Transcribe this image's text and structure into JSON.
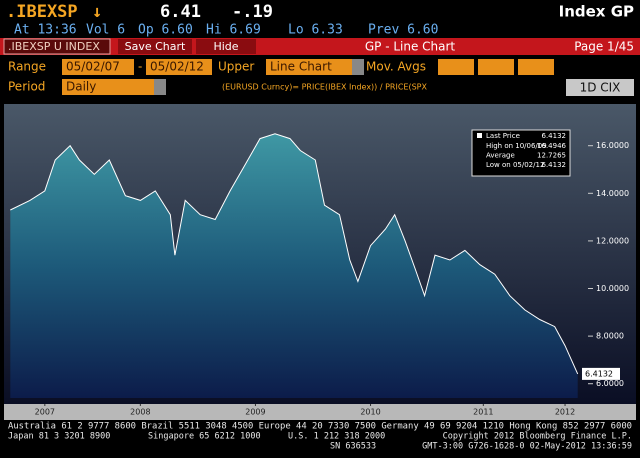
{
  "header": {
    "ticker": ".IBEXSP",
    "arrow": "↓",
    "price": "6.41",
    "change": "-.19",
    "function": "Index GP"
  },
  "quote_line": {
    "time": "At 13:36",
    "volume": "Vol 6",
    "open": "Op 6.60",
    "high": "Hi 6.69",
    "low": "Lo 6.33",
    "prev": "Prev 6.60"
  },
  "toolbar": {
    "security": ".IBEXSP U INDEX",
    "save": "Save Chart",
    "hide": "Hide",
    "title": "GP - Line Chart",
    "page": "Page 1/45"
  },
  "settings": {
    "range_label": "Range",
    "start": "05/02/07",
    "dash": "-",
    "end": "05/02/12",
    "upper_label": "Upper",
    "upper": "Line Chart",
    "mov_avgs": "Mov. Avgs",
    "period_label": "Period",
    "period": "Daily",
    "formula": "(EURUSD Curncy)= PRICE(IBEX Index)) / PRICE(SPX",
    "cix": "1D CIX"
  },
  "chart_data": {
    "type": "area",
    "x": [
      2007.37,
      2007.54,
      2007.67,
      2007.76,
      2007.89,
      2007.97,
      2008.1,
      2008.23,
      2008.37,
      2008.5,
      2008.63,
      2008.76,
      2008.8,
      2008.89,
      2009.02,
      2009.15,
      2009.28,
      2009.41,
      2009.54,
      2009.67,
      2009.8,
      2009.89,
      2010.02,
      2010.1,
      2010.23,
      2010.32,
      2010.39,
      2010.5,
      2010.63,
      2010.71,
      2010.8,
      2010.89,
      2010.97,
      2011.06,
      2011.19,
      2011.32,
      2011.45,
      2011.58,
      2011.71,
      2011.84,
      2011.97,
      2012.1,
      2012.19,
      2012.3
    ],
    "series": [
      {
        "name": "Last Price",
        "color": "#ffffff",
        "values": [
          13.3,
          13.7,
          14.1,
          15.4,
          16.0,
          15.4,
          14.8,
          15.4,
          13.9,
          13.7,
          14.1,
          13.1,
          11.4,
          13.7,
          13.1,
          12.9,
          14.1,
          15.2,
          16.3,
          16.5,
          16.3,
          15.8,
          15.4,
          13.5,
          13.1,
          11.2,
          10.3,
          11.8,
          12.5,
          13.1,
          12.0,
          10.8,
          9.7,
          11.4,
          11.2,
          11.6,
          11.0,
          10.6,
          9.7,
          9.1,
          8.7,
          8.4,
          7.6,
          6.4132
        ]
      }
    ],
    "xlim": [
      2007.35,
      2012.32
    ],
    "xticks": [
      {
        "value": 2007.67,
        "label": "2007"
      },
      {
        "value": 2008.5,
        "label": "2008"
      },
      {
        "value": 2009.5,
        "label": "2009"
      },
      {
        "value": 2010.5,
        "label": "2010"
      },
      {
        "value": 2011.48,
        "label": "2011"
      },
      {
        "value": 2012.19,
        "label": "2012"
      }
    ],
    "ylim": [
      5.4,
      17.5
    ],
    "yticks": [
      {
        "value": 6,
        "label": "6.0000"
      },
      {
        "value": 8,
        "label": "8.0000"
      },
      {
        "value": 10,
        "label": "10.0000"
      },
      {
        "value": 12,
        "label": "12.0000"
      },
      {
        "value": 14,
        "label": "14.0000"
      },
      {
        "value": 16,
        "label": "16.0000"
      }
    ],
    "legend_value": 6.4132,
    "stats": [
      {
        "label": "High on 10/06/09",
        "value": 16.4946
      },
      {
        "label": "Average",
        "value": 12.7265
      },
      {
        "label": "Low on 05/02/12",
        "value": 6.4132
      }
    ]
  },
  "footer": {
    "line1": "Australia 61 2 9777 8600 Brazil 5511 3048 4500 Europe 44 20 7330 7500 Germany 49 69 9204 1210 Hong Kong 852 2977 6000",
    "line2": [
      "Japan 81 3 3201 8900",
      "Singapore 65 6212 1000",
      "U.S. 1 212 318 2000",
      "Copyright 2012 Bloomberg Finance L.P."
    ],
    "line3": [
      "SN 636533",
      "GMT-3:00 G726-1628-0 02-May-2012 13:36:59"
    ]
  }
}
